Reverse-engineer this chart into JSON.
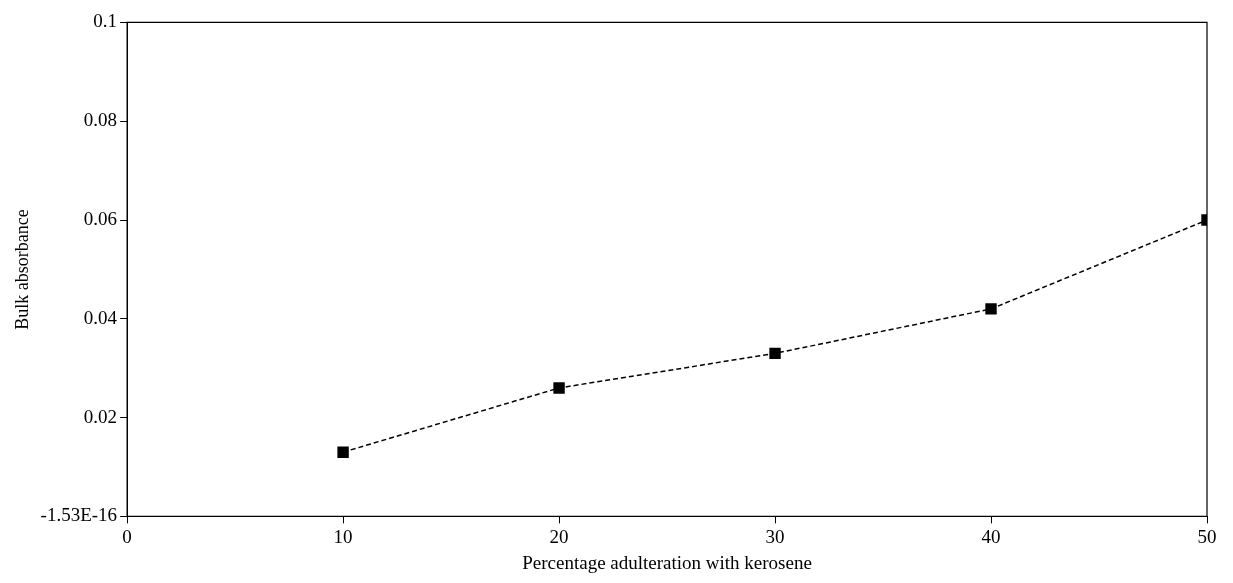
{
  "chart_data": {
    "type": "line",
    "xlabel": "Percentage adulteration with kerosene",
    "ylabel": "Bulk absorbance",
    "x": [
      10,
      20,
      30,
      40,
      50
    ],
    "series": [
      {
        "color": "#000000",
        "values": [
          0.013,
          0.026,
          0.033,
          0.042,
          0.06
        ]
      }
    ],
    "xlim": [
      0,
      50
    ],
    "xticks": [
      0,
      10,
      20,
      30,
      40,
      50
    ],
    "ylim": [
      0,
      0.1
    ],
    "yticks": [
      {
        "value": 0,
        "label": "-1.53E-16"
      },
      0.02,
      0.04,
      0.06,
      0.08,
      0.1
    ],
    "grid": false,
    "legend": false,
    "marker": "square",
    "line_style": "dashed"
  }
}
